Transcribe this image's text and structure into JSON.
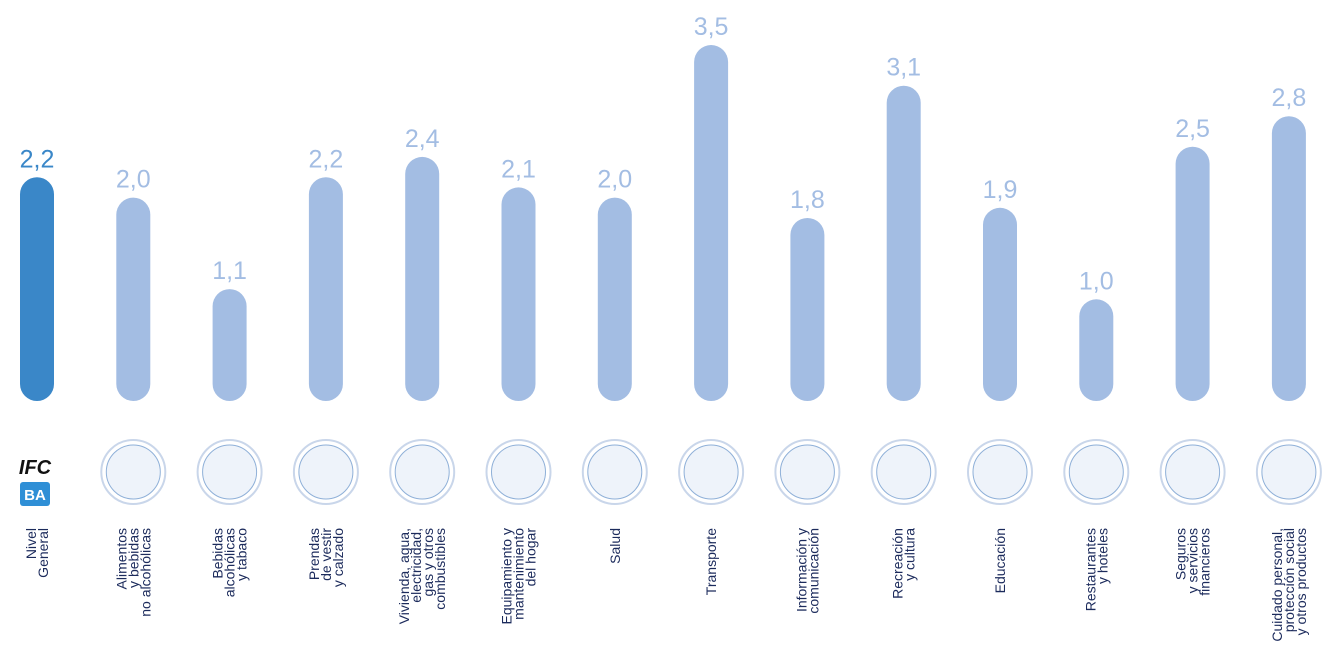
{
  "chart_data": {
    "type": "bar",
    "logo": {
      "top": "IFC",
      "bottom": "BA"
    },
    "categories": [
      [
        "Nivel",
        "General"
      ],
      [
        "Alimentos",
        "y bebidas",
        "no alcohólicas"
      ],
      [
        "Bebidas",
        "alcohólicas",
        "y tabaco"
      ],
      [
        "Prendas",
        "de vestir",
        "y calzado"
      ],
      [
        "Vivienda, agua,",
        "electricidad,",
        "gas y otros",
        "combustibles"
      ],
      [
        "Equipamiento y",
        "mantenimiento",
        "del hogar"
      ],
      [
        "Salud"
      ],
      [
        "Transporte"
      ],
      [
        "Información y",
        "comunicación"
      ],
      [
        "Recreación",
        "y cultura"
      ],
      [
        "Educación"
      ],
      [
        "Restaurantes",
        "y hoteles"
      ],
      [
        "Seguros",
        "y servicios",
        "financieros"
      ],
      [
        "Cuidado personal,",
        "protección social",
        "y otros productos"
      ]
    ],
    "values": [
      2.2,
      2.0,
      1.1,
      2.2,
      2.4,
      2.1,
      2.0,
      3.5,
      1.8,
      3.1,
      1.9,
      1.0,
      2.5,
      2.8
    ],
    "value_labels": [
      "2,2",
      "2,0",
      "1,1",
      "2,2",
      "2,4",
      "2,1",
      "2,0",
      "3,5",
      "1,8",
      "3,1",
      "1,9",
      "1,0",
      "2,5",
      "2,8"
    ],
    "colors": [
      "#3a87c8",
      "#a3bde3",
      "#a3bde3",
      "#a3bde3",
      "#a3bde3",
      "#a3bde3",
      "#a3bde3",
      "#a3bde3",
      "#a3bde3",
      "#a3bde3",
      "#a3bde3",
      "#a3bde3",
      "#a3bde3",
      "#a3bde3"
    ]
  }
}
